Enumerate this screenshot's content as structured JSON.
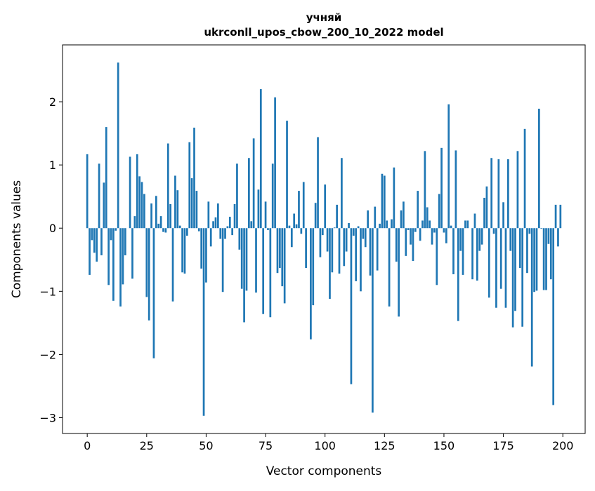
{
  "chart_data": {
    "type": "bar",
    "title_line1": "учняй",
    "title_line2": "ukrconll_upos_cbow_200_10_2022 model",
    "xlabel": "Vector components",
    "ylabel": "Components values",
    "xlim": [
      -10.39,
      209.39
    ],
    "ylim": [
      -3.25,
      2.9
    ],
    "xticks": [
      0,
      25,
      50,
      75,
      100,
      125,
      150,
      175,
      200
    ],
    "xtick_labels": [
      "0",
      "25",
      "50",
      "75",
      "100",
      "125",
      "150",
      "175",
      "200"
    ],
    "yticks": [
      -3,
      -2,
      -1,
      0,
      1,
      2
    ],
    "ytick_labels": [
      "−3",
      "−2",
      "−1",
      "0",
      "1",
      "2"
    ],
    "grid": false,
    "bar_color": "#1f77b4",
    "values": [
      1.17,
      -0.74,
      -0.19,
      -0.39,
      -0.53,
      1.02,
      -0.43,
      0.72,
      1.6,
      -0.9,
      -0.19,
      -1.15,
      -0.04,
      2.62,
      -1.24,
      -0.89,
      -0.43,
      0.0,
      1.13,
      -0.8,
      0.19,
      1.17,
      0.82,
      0.73,
      0.54,
      -1.09,
      -1.46,
      0.39,
      -2.06,
      0.51,
      0.07,
      0.19,
      -0.06,
      -0.07,
      1.34,
      0.38,
      -1.16,
      0.83,
      0.6,
      0.04,
      -0.7,
      -0.72,
      -0.12,
      1.36,
      0.79,
      1.59,
      0.59,
      -0.05,
      -0.64,
      -2.97,
      -0.86,
      0.42,
      -0.29,
      0.11,
      0.17,
      0.39,
      -0.17,
      -1.01,
      -0.17,
      0.03,
      0.18,
      -0.11,
      0.38,
      1.02,
      -0.34,
      -0.96,
      -1.49,
      -0.99,
      1.11,
      0.11,
      1.42,
      -1.02,
      0.61,
      2.2,
      -1.36,
      0.42,
      -0.03,
      -1.41,
      1.02,
      2.07,
      -0.71,
      -0.63,
      -0.92,
      -1.19,
      1.7,
      0.04,
      -0.3,
      0.23,
      0.06,
      0.59,
      -0.09,
      0.73,
      -0.63,
      0.0,
      -1.76,
      -1.22,
      0.4,
      1.44,
      -0.46,
      -0.11,
      0.69,
      -0.37,
      -1.12,
      -0.7,
      0.01,
      0.37,
      -0.72,
      1.11,
      -0.6,
      -0.37,
      0.08,
      -2.47,
      -0.12,
      -0.84,
      0.03,
      -1.0,
      -0.17,
      -0.3,
      0.28,
      -0.75,
      -2.92,
      0.34,
      -0.67,
      0.07,
      0.86,
      0.83,
      0.12,
      -1.24,
      0.14,
      0.96,
      -0.53,
      -1.4,
      0.28,
      0.42,
      -0.44,
      -0.03,
      -0.26,
      -0.52,
      -0.06,
      0.59,
      -0.2,
      0.12,
      1.22,
      0.33,
      0.12,
      -0.26,
      -0.07,
      -0.9,
      0.54,
      1.27,
      -0.07,
      -0.24,
      1.96,
      0.04,
      -0.73,
      1.23,
      -1.47,
      -0.36,
      -0.74,
      0.12,
      0.12,
      0.0,
      -0.81,
      0.23,
      -0.83,
      -0.36,
      -0.26,
      0.48,
      0.66,
      -1.1,
      1.11,
      -0.09,
      -1.26,
      1.09,
      -0.96,
      0.41,
      -1.26,
      1.09,
      -0.36,
      -1.57,
      -1.31,
      1.22,
      -0.63,
      -1.56,
      1.57,
      -0.71,
      -0.09,
      -2.19,
      -1.01,
      -0.99,
      1.89,
      -0.01,
      -0.98,
      -0.98,
      -0.25,
      -0.81,
      -2.8,
      0.37,
      -0.29,
      0.37
    ]
  }
}
